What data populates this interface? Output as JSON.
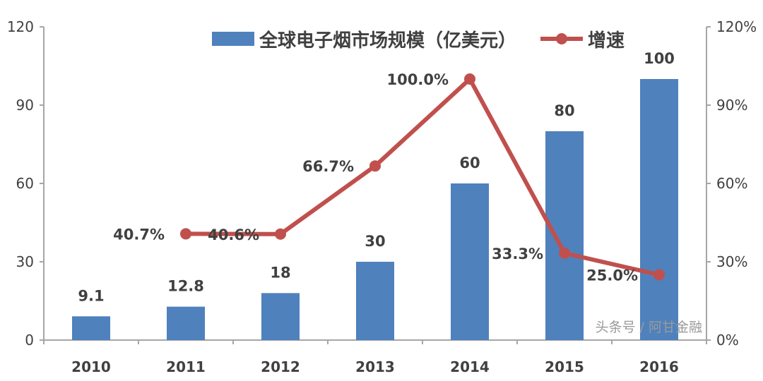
{
  "chart_data": {
    "type": "bar+line",
    "categories": [
      "2010",
      "2011",
      "2012",
      "2013",
      "2014",
      "2015",
      "2016"
    ],
    "series": [
      {
        "name": "全球电子烟市场规模（亿美元）",
        "type": "bar",
        "axis": "left",
        "color": "#4f81bd",
        "values": [
          9.1,
          12.8,
          18,
          30,
          60,
          80,
          100
        ],
        "labels": [
          "9.1",
          "12.8",
          "18",
          "30",
          "60",
          "80",
          "100"
        ]
      },
      {
        "name": "增速",
        "type": "line",
        "axis": "right",
        "color": "#c0504d",
        "values": [
          null,
          40.7,
          40.6,
          66.7,
          100.0,
          33.3,
          25.0
        ],
        "labels": [
          "",
          "40.7%",
          "40.6%",
          "66.7%",
          "100.0%",
          "33.3%",
          "25.0%"
        ]
      }
    ],
    "y_left": {
      "range": [
        0,
        120
      ],
      "ticks": [
        "0",
        "30",
        "60",
        "90",
        "120"
      ]
    },
    "y_right": {
      "range": [
        0,
        120
      ],
      "ticks": [
        "0%",
        "30%",
        "60%",
        "90%",
        "120%"
      ]
    },
    "grid": false,
    "legend": "top"
  },
  "watermark": "头条号 / 阿甘金融"
}
